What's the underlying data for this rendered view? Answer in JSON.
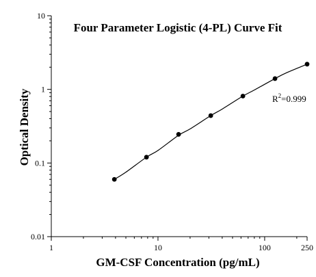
{
  "chart_data": {
    "type": "scatter",
    "title": "Four Parameter Logistic (4-PL) Curve Fit",
    "xlabel": "GM-CSF Concentration (pg/mL)",
    "ylabel": "Optical Density",
    "x_scale": "log",
    "y_scale": "log",
    "xlim": [
      1,
      250
    ],
    "ylim": [
      0.01,
      10
    ],
    "x_ticks": [
      {
        "value": 1,
        "label": "1"
      },
      {
        "value": 10,
        "label": "10"
      },
      {
        "value": 100,
        "label": "100"
      },
      {
        "value": 250,
        "label": "250"
      }
    ],
    "y_ticks": [
      {
        "value": 0.01,
        "label": "0.01"
      },
      {
        "value": 0.1,
        "label": "0.1"
      },
      {
        "value": 1,
        "label": "1"
      },
      {
        "value": 10,
        "label": "10"
      }
    ],
    "grid": false,
    "legend": "none",
    "series": [
      {
        "x": [
          3.9,
          7.8,
          15.6,
          31.25,
          62.5,
          125,
          250
        ],
        "y": [
          0.06,
          0.12,
          0.245,
          0.44,
          0.81,
          1.4,
          2.2
        ]
      }
    ],
    "fit_curve": {
      "model": "4-PL",
      "x": [
        3.9,
        5,
        7.8,
        10,
        15.6,
        20,
        31.25,
        40,
        62.5,
        80,
        125,
        160,
        250
      ],
      "y": [
        0.06,
        0.075,
        0.12,
        0.148,
        0.238,
        0.29,
        0.44,
        0.54,
        0.81,
        0.98,
        1.4,
        1.68,
        2.2
      ]
    },
    "annotation": {
      "r_base": "R",
      "r_sup": "2",
      "r_value": "=0.999"
    },
    "colors": {
      "axis": "#000000",
      "marker": "#000000",
      "curve": "#000000",
      "background": "#ffffff"
    }
  }
}
